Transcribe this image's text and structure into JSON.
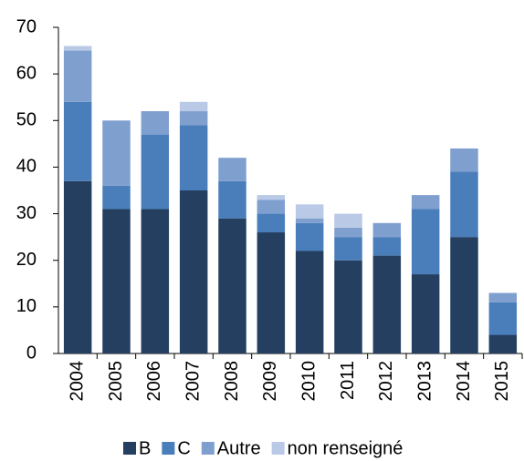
{
  "chart_data": {
    "type": "bar",
    "stacked": true,
    "categories": [
      "2004",
      "2005",
      "2006",
      "2007",
      "2008",
      "2009",
      "2010",
      "2011",
      "2012",
      "2013",
      "2014",
      "2015"
    ],
    "series": [
      {
        "name": "B",
        "color": "#243f60",
        "values": [
          37,
          31,
          31,
          35,
          29,
          26,
          22,
          20,
          21,
          17,
          25,
          4
        ]
      },
      {
        "name": "C",
        "color": "#4a7ebb",
        "values": [
          17,
          5,
          16,
          14,
          8,
          4,
          6,
          5,
          4,
          14,
          14,
          7
        ]
      },
      {
        "name": "Autre",
        "color": "#7f9fcf",
        "values": [
          11,
          14,
          5,
          3,
          5,
          3,
          1,
          2,
          3,
          3,
          5,
          2
        ]
      },
      {
        "name": "non renseigné",
        "color": "#b9c9e6",
        "values": [
          1,
          0,
          0,
          2,
          0,
          1,
          3,
          3,
          0,
          0,
          0,
          0
        ]
      }
    ],
    "ylim": [
      0,
      70
    ],
    "yticks": [
      0,
      10,
      20,
      30,
      40,
      50,
      60,
      70
    ],
    "legend": "bottom"
  }
}
